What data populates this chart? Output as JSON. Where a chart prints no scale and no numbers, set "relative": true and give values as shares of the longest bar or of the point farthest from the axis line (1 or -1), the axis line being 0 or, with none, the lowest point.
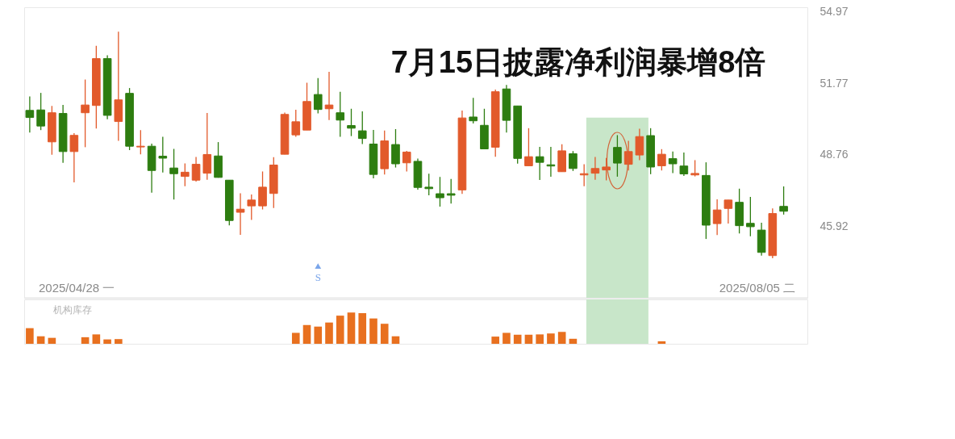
{
  "chart_data": [
    {
      "type": "candlestick",
      "categories": [
        null,
        null,
        null,
        null,
        null,
        null,
        null,
        null,
        null,
        null,
        null,
        null,
        null,
        null,
        null,
        null,
        null,
        null,
        null,
        null,
        null,
        null,
        null,
        null,
        null,
        null,
        null,
        null,
        null,
        null,
        null,
        null,
        null,
        null,
        null,
        null,
        null,
        null,
        null,
        null,
        null,
        null,
        null,
        null,
        null,
        null,
        null,
        null,
        null,
        null,
        null,
        null,
        null,
        null,
        null,
        null,
        null,
        null,
        null,
        null,
        null,
        null,
        null,
        null,
        null,
        null,
        null,
        null,
        null
      ],
      "ohlc": [
        [
          50.61,
          51.21,
          49.68,
          50.31
        ],
        [
          50.63,
          51.36,
          49.78,
          49.95
        ],
        [
          49.29,
          50.8,
          48.76,
          50.51
        ],
        [
          50.48,
          50.84,
          48.43,
          48.89
        ],
        [
          48.89,
          49.65,
          47.64,
          49.56
        ],
        [
          50.51,
          51.94,
          49.07,
          50.84
        ],
        [
          50.82,
          53.43,
          49.85,
          52.86
        ],
        [
          52.86,
          53.01,
          50.24,
          50.4
        ],
        [
          50.14,
          54.07,
          49.33,
          51.06
        ],
        [
          51.34,
          51.57,
          48.95,
          49.11
        ],
        [
          49.08,
          49.78,
          48.78,
          49.11
        ],
        [
          49.11,
          49.22,
          47.23,
          48.12
        ],
        [
          48.7,
          49.5,
          48.04,
          48.62
        ],
        [
          48.22,
          49.0,
          46.96,
          47.99
        ],
        [
          47.88,
          48.41,
          47.49,
          48.05
        ],
        [
          47.73,
          48.67,
          47.67,
          48.37
        ],
        [
          48.01,
          50.5,
          47.75,
          48.77
        ],
        [
          48.71,
          49.28,
          47.83,
          47.84
        ],
        [
          47.73,
          47.73,
          45.95,
          46.14
        ],
        [
          46.46,
          47.21,
          45.59,
          46.58
        ],
        [
          46.71,
          47.16,
          46.16,
          46.94
        ],
        [
          46.71,
          48.08,
          46.57,
          47.45
        ],
        [
          47.2,
          48.66,
          46.63,
          48.34
        ],
        [
          48.78,
          50.52,
          48.78,
          50.44
        ],
        [
          49.58,
          50.64,
          49.5,
          50.13
        ],
        [
          49.78,
          51.8,
          49.78,
          50.99
        ],
        [
          51.29,
          52.0,
          50.48,
          50.65
        ],
        [
          50.68,
          52.28,
          50.2,
          50.84
        ],
        [
          50.51,
          51.41,
          49.5,
          50.2
        ],
        [
          49.97,
          50.68,
          49.53,
          49.86
        ],
        [
          49.75,
          50.57,
          49.2,
          49.43
        ],
        [
          49.2,
          49.79,
          47.8,
          47.96
        ],
        [
          48.19,
          49.76,
          47.96,
          49.33
        ],
        [
          49.18,
          49.82,
          48.24,
          48.39
        ],
        [
          48.43,
          48.92,
          48.08,
          48.87
        ],
        [
          48.49,
          48.6,
          47.35,
          47.44
        ],
        [
          47.45,
          47.99,
          47.13,
          47.39
        ],
        [
          47.19,
          47.86,
          46.68,
          47.03
        ],
        [
          47.19,
          47.78,
          46.8,
          47.13
        ],
        [
          47.34,
          50.6,
          47.18,
          50.29
        ],
        [
          50.33,
          51.15,
          50.06,
          50.17
        ],
        [
          49.98,
          50.68,
          49.0,
          49.0
        ],
        [
          49.07,
          51.5,
          48.68,
          51.41
        ],
        [
          51.53,
          51.7,
          49.68,
          50.19
        ],
        [
          50.8,
          50.8,
          48.4,
          48.61
        ],
        [
          48.31,
          49.86,
          48.31,
          48.68
        ],
        [
          48.68,
          49.08,
          47.74,
          48.45
        ],
        [
          48.35,
          49.08,
          47.87,
          48.3
        ],
        [
          48.07,
          49.19,
          48.07,
          48.92
        ],
        [
          48.8,
          48.91,
          48.1,
          48.2
        ],
        [
          47.94,
          48.37,
          47.49,
          47.99
        ],
        [
          48.01,
          48.67,
          47.75,
          48.2
        ],
        [
          48.14,
          48.63,
          47.72,
          48.26
        ],
        [
          49.06,
          49.57,
          47.87,
          48.42
        ],
        [
          48.37,
          49.33,
          48.12,
          48.89
        ],
        [
          48.75,
          49.84,
          48.54,
          49.51
        ],
        [
          49.55,
          49.86,
          47.97,
          48.26
        ],
        [
          48.31,
          48.99,
          48.12,
          48.78
        ],
        [
          48.6,
          48.89,
          48.01,
          48.39
        ],
        [
          48.3,
          48.85,
          47.9,
          47.98
        ],
        [
          47.94,
          48.54,
          47.88,
          48.0
        ],
        [
          47.92,
          48.45,
          45.43,
          45.96
        ],
        [
          46.02,
          46.97,
          45.58,
          46.55
        ],
        [
          46.61,
          46.94,
          46.02,
          46.94
        ],
        [
          46.85,
          47.39,
          45.64,
          45.94
        ],
        [
          46.03,
          47.06,
          45.53,
          45.9
        ],
        [
          45.77,
          46.05,
          44.8,
          44.92
        ],
        [
          44.8,
          46.61,
          44.7,
          46.41
        ],
        [
          46.69,
          47.48,
          46.37,
          46.5
        ]
      ],
      "colors": [
        "#2d7d10",
        "#2d7d10",
        "#e25a2b",
        "#2d7d10",
        "#e25a2b",
        "#e25a2b",
        "#e25a2b",
        "#2d7d10",
        "#e25a2b",
        "#2d7d10",
        "#e25a2b",
        "#2d7d10",
        "#2d7d10",
        "#2d7d10",
        "#e25a2b",
        "#e25a2b",
        "#e25a2b",
        "#2d7d10",
        "#2d7d10",
        "#e25a2b",
        "#e25a2b",
        "#e25a2b",
        "#e25a2b",
        "#e25a2b",
        "#e25a2b",
        "#e25a2b",
        "#2d7d10",
        "#e25a2b",
        "#2d7d10",
        "#2d7d10",
        "#2d7d10",
        "#2d7d10",
        "#e25a2b",
        "#2d7d10",
        "#e25a2b",
        "#2d7d10",
        "#2d7d10",
        "#2d7d10",
        "#2d7d10",
        "#e25a2b",
        "#2d7d10",
        "#2d7d10",
        "#e25a2b",
        "#2d7d10",
        "#2d7d10",
        "#e25a2b",
        "#2d7d10",
        "#2d7d10",
        "#e25a2b",
        "#2d7d10",
        "#e25a2b",
        "#e25a2b",
        "#e25a2b",
        "#2d7d10",
        "#e25a2b",
        "#e25a2b",
        "#2d7d10",
        "#e25a2b",
        "#2d7d10",
        "#2d7d10",
        "#e25a2b",
        "#2d7d10",
        "#e25a2b",
        "#e25a2b",
        "#2d7d10",
        "#2d7d10",
        "#2d7d10",
        "#e25a2b",
        "#2d7d10"
      ],
      "series": [
        {
          "type": "scatter",
          "name": "S",
          "color": "#7aa5ea",
          "marker": "triangle",
          "values": [
            null,
            null,
            null,
            null,
            null,
            null,
            null,
            null,
            null,
            null,
            null,
            null,
            null,
            null,
            null,
            null,
            null,
            null,
            null,
            null,
            null,
            null,
            null,
            null,
            null,
            null,
            44.41,
            null,
            null,
            null,
            null,
            null,
            null,
            null,
            null,
            null,
            null,
            null,
            null,
            null,
            null,
            null,
            null,
            null,
            null,
            null,
            null,
            null,
            null,
            null,
            null,
            null,
            null,
            null,
            null,
            null,
            null,
            null,
            null,
            null,
            null,
            null,
            null,
            null,
            null,
            null,
            null,
            null,
            null
          ]
        }
      ],
      "log": true,
      "ylim": [
        43.24,
        55.19
      ],
      "yticks": [
        45.92,
        48.76,
        51.77,
        54.97
      ],
      "annotations": [
        "7月15日披露净利润暴增8倍",
        "2025/04/28 一",
        "2025/08/05 二"
      ]
    },
    {
      "type": "bar",
      "title": "机构库存",
      "relative": true,
      "color": "#e8701f",
      "categories": [
        null,
        null,
        null,
        null,
        null,
        null,
        null,
        null,
        null,
        null,
        null,
        null,
        null,
        null,
        null,
        null,
        null,
        null,
        null,
        null,
        null,
        null,
        null,
        null,
        null,
        null,
        null,
        null,
        null,
        null,
        null,
        null,
        null,
        null,
        null,
        null,
        null,
        null,
        null,
        null,
        null,
        null,
        null,
        null,
        null,
        null,
        null,
        null,
        null,
        null,
        null,
        null,
        null,
        null,
        null,
        null,
        null,
        null,
        null,
        null,
        null,
        null,
        null,
        null,
        null,
        null,
        null,
        null,
        null
      ],
      "values": [
        0.5,
        0.24,
        0.19,
        null,
        null,
        0.21,
        0.3,
        0.14,
        0.15,
        null,
        null,
        null,
        null,
        null,
        null,
        null,
        null,
        null,
        null,
        null,
        null,
        null,
        null,
        null,
        0.35,
        0.6,
        0.55,
        0.68,
        0.9,
        1,
        0.98,
        0.81,
        0.64,
        0.24,
        null,
        null,
        null,
        null,
        null,
        null,
        null,
        null,
        0.23,
        0.35,
        0.29,
        0.29,
        0.3,
        0.33,
        0.38,
        0.16,
        null,
        null,
        null,
        null,
        null,
        null,
        null,
        0.08,
        null,
        null,
        null,
        null,
        null,
        null,
        null,
        null,
        null,
        null,
        null
      ]
    }
  ]
}
